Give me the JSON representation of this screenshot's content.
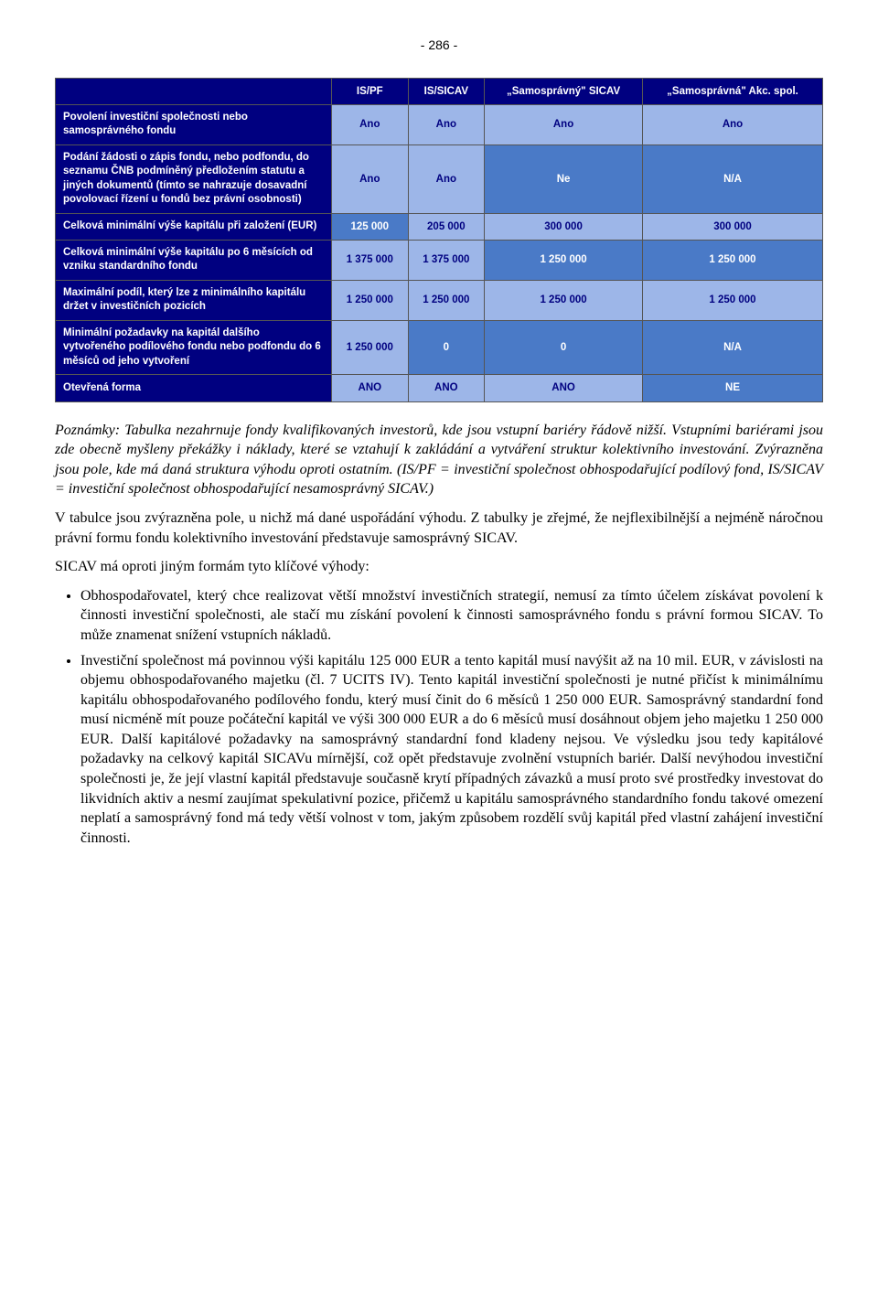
{
  "page_number": "- 286 -",
  "table": {
    "headers": [
      "",
      "IS/PF",
      "IS/SICAV",
      "„Samosprávný\" SICAV",
      "„Samosprávná\" Akc. spol."
    ],
    "rows": [
      {
        "label": "Povolení investiční společnosti nebo samosprávného fondu",
        "cells": [
          {
            "val": "Ano",
            "hl": false
          },
          {
            "val": "Ano",
            "hl": false
          },
          {
            "val": "Ano",
            "hl": false
          },
          {
            "val": "Ano",
            "hl": false
          }
        ]
      },
      {
        "label": "Podání žádosti o zápis fondu, nebo podfondu, do seznamu ČNB podmíněný předložením statutu a jiných dokumentů (tímto se nahrazuje dosavadní povolovací řízení u fondů bez právní osobnosti)",
        "cells": [
          {
            "val": "Ano",
            "hl": false
          },
          {
            "val": "Ano",
            "hl": false
          },
          {
            "val": "Ne",
            "hl": true
          },
          {
            "val": "N/A",
            "hl": true
          }
        ]
      },
      {
        "label": "Celková minimální výše kapitálu při založení (EUR)",
        "cells": [
          {
            "val": "125 000",
            "hl": true
          },
          {
            "val": "205 000",
            "hl": false
          },
          {
            "val": "300 000",
            "hl": false
          },
          {
            "val": "300 000",
            "hl": false
          }
        ]
      },
      {
        "label": "Celková minimální výše kapitálu po 6 měsících od vzniku standardního fondu",
        "cells": [
          {
            "val": "1 375 000",
            "hl": false
          },
          {
            "val": "1 375 000",
            "hl": false
          },
          {
            "val": "1 250 000",
            "hl": true
          },
          {
            "val": "1 250 000",
            "hl": true
          }
        ]
      },
      {
        "label": "Maximální podíl, který lze z minimálního kapitálu držet v investičních pozicích",
        "cells": [
          {
            "val": "1 250 000",
            "hl": false
          },
          {
            "val": "1 250 000",
            "hl": false
          },
          {
            "val": "1 250 000",
            "hl": false
          },
          {
            "val": "1 250 000",
            "hl": false
          }
        ]
      },
      {
        "label": "Minimální požadavky na kapitál dalšího vytvořeného podílového fondu nebo podfondu do 6 měsíců od jeho vytvoření",
        "cells": [
          {
            "val": "1 250 000",
            "hl": false
          },
          {
            "val": "0",
            "hl": true
          },
          {
            "val": "0",
            "hl": true
          },
          {
            "val": "N/A",
            "hl": true
          }
        ]
      },
      {
        "label": "Otevřená forma",
        "cells": [
          {
            "val": "ANO",
            "hl": false
          },
          {
            "val": "ANO",
            "hl": false
          },
          {
            "val": "ANO",
            "hl": false
          },
          {
            "val": "NE",
            "hl": true
          }
        ]
      }
    ]
  },
  "paragraphs": {
    "note": "Poznámky: Tabulka nezahrnuje fondy kvalifikovaných investorů, kde jsou vstupní bariéry řádově nižší. Vstupními bariérami jsou zde obecně myšleny překážky i náklady, které se vztahují k zakládání a vytváření struktur kolektivního investování. Zvýrazněna jsou pole, kde má daná struktura výhodu oproti ostatním. (IS/PF = investiční společnost obhospodařující podílový fond, IS/SICAV = investiční společnost obhospodařující nesamosprávný SICAV.)",
    "p1": "V tabulce jsou zvýrazněna pole, u nichž má dané uspořádání výhodu. Z tabulky je zřejmé, že nejflexibilnější a nejméně náročnou právní formu fondu kolektivního investování představuje samosprávný SICAV.",
    "p2": "SICAV má oproti jiným formám tyto klíčové výhody:",
    "b1": "Obhospodařovatel, který chce realizovat větší množství investičních strategií, nemusí za tímto účelem získávat povolení k činnosti investiční společnosti, ale stačí mu získání povolení k činnosti samosprávného fondu s právní formou SICAV. To může znamenat snížení vstupních nákladů.",
    "b2": "Investiční společnost má povinnou výši kapitálu 125 000 EUR a tento kapitál musí navýšit až na 10 mil. EUR, v závislosti na objemu obhospodařovaného majetku (čl. 7 UCITS IV). Tento kapitál investiční společnosti je nutné přičíst k minimálnímu kapitálu obhospodařovaného podílového fondu, který musí činit do 6 měsíců 1 250 000 EUR. Samosprávný standardní fond musí nicméně mít pouze počáteční kapitál ve výši 300 000 EUR a do 6 měsíců musí dosáhnout objem jeho majetku 1 250 000 EUR. Další kapitálové požadavky na samosprávný standardní fond kladeny nejsou. Ve výsledku jsou tedy kapitálové požadavky na celkový kapitál SICAVu mírnější, což opět představuje zvolnění vstupních bariér. Další nevýhodou investiční společnosti je, že její vlastní kapitál představuje současně krytí případných závazků a musí proto své prostředky investovat do likvidních aktiv a nesmí zaujímat spekulativní pozice, přičemž u kapitálu samosprávného standardního fondu takové omezení neplatí a samosprávný fond má tedy větší volnost v tom, jakým způsobem rozdělí svůj kapitál před vlastní zahájení investiční činnosti."
  }
}
